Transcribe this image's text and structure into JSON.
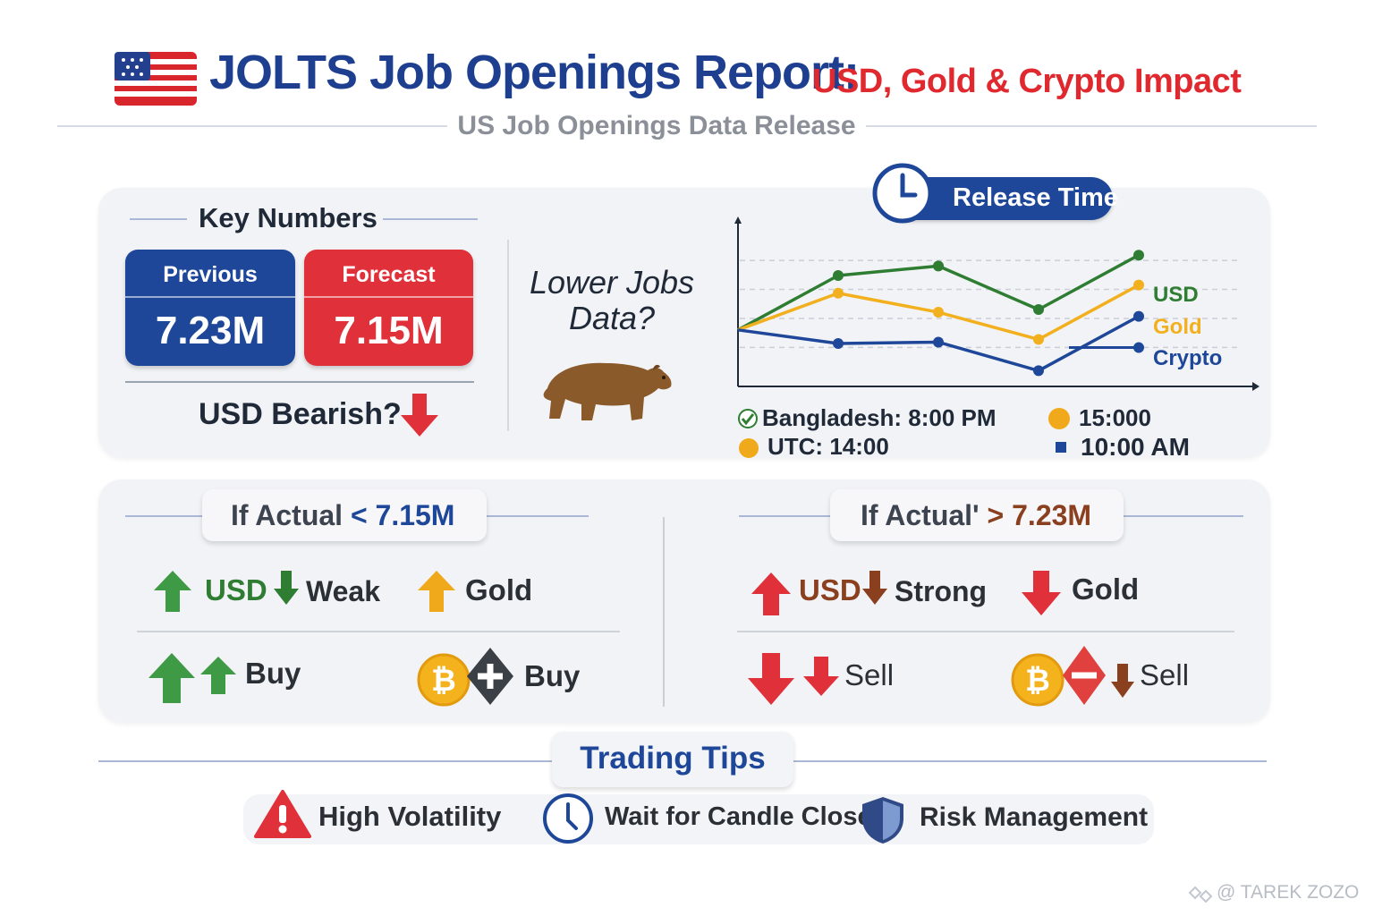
{
  "header": {
    "title": "JOLTS Job Openings Report:",
    "title_suffix": "USD, Gold & Crypto Impact",
    "subtitle": "US Job Openings Data Release"
  },
  "key_numbers": {
    "title": "Key Numbers",
    "previous_label": "Previous",
    "previous_value": "7.23M",
    "forecast_label": "Forecast",
    "forecast_value": "7.15M",
    "bias": "USD Bearish?"
  },
  "sentiment": {
    "question": "Lower Jobs Data?",
    "line1": "Lower Jobs",
    "line2": "Data?"
  },
  "release_time": {
    "label": "Release Time",
    "legend": [
      "USD",
      "Gold",
      "Crypto"
    ],
    "times": {
      "bangladesh": "Bangladesh: 8:00 PM",
      "utc": "UTC:  14:00",
      "alt1": "15:000",
      "alt2": "10:00 AM"
    }
  },
  "chart_data": {
    "type": "line",
    "title": "",
    "xlabel": "",
    "ylabel": "",
    "x": [
      0,
      1,
      2,
      3,
      4
    ],
    "series": [
      {
        "name": "USD",
        "values": [
          0.35,
          0.75,
          0.82,
          0.5,
          0.9
        ]
      },
      {
        "name": "Gold",
        "values": [
          0.35,
          0.62,
          0.48,
          0.28,
          0.68
        ]
      },
      {
        "name": "Crypto",
        "values": [
          0.35,
          0.25,
          0.26,
          0.05,
          0.45
        ]
      }
    ],
    "grid": true,
    "colors": {
      "USD": "#2e7d32",
      "Gold": "#f2b01e",
      "Crypto": "#1e4799"
    }
  },
  "scenario_low": {
    "label_prefix": "If Actual",
    "label_value": "< 7.15M",
    "usd": "USD",
    "usd_state": "Weak",
    "gold": "Gold",
    "action1": "Buy",
    "action2": "Buy"
  },
  "scenario_high": {
    "label_prefix": "If Actual'",
    "label_value": "> 7.23M",
    "usd": "USD",
    "usd_state": "Strong",
    "gold": "Gold",
    "action1": "Sell",
    "action2": "Sell"
  },
  "tips": {
    "title": "Trading Tips",
    "items": [
      "High Volatility",
      "Wait for Candle Close",
      "Risk Management"
    ]
  },
  "watermark": "@ TAREK ZOZO",
  "colors": {
    "navy": "#1e4799",
    "red": "#e0303a",
    "green": "#2e8b3a",
    "gold": "#f0a91a",
    "brown": "#8a3f1f"
  },
  "icons": [
    "us-flag-icon",
    "arrow-down-icon",
    "bear-icon",
    "clock-icon",
    "check-icon",
    "arrow-up-icon",
    "bitcoin-icon",
    "plus-diamond-icon",
    "minus-diamond-icon",
    "warning-icon",
    "shield-icon"
  ]
}
